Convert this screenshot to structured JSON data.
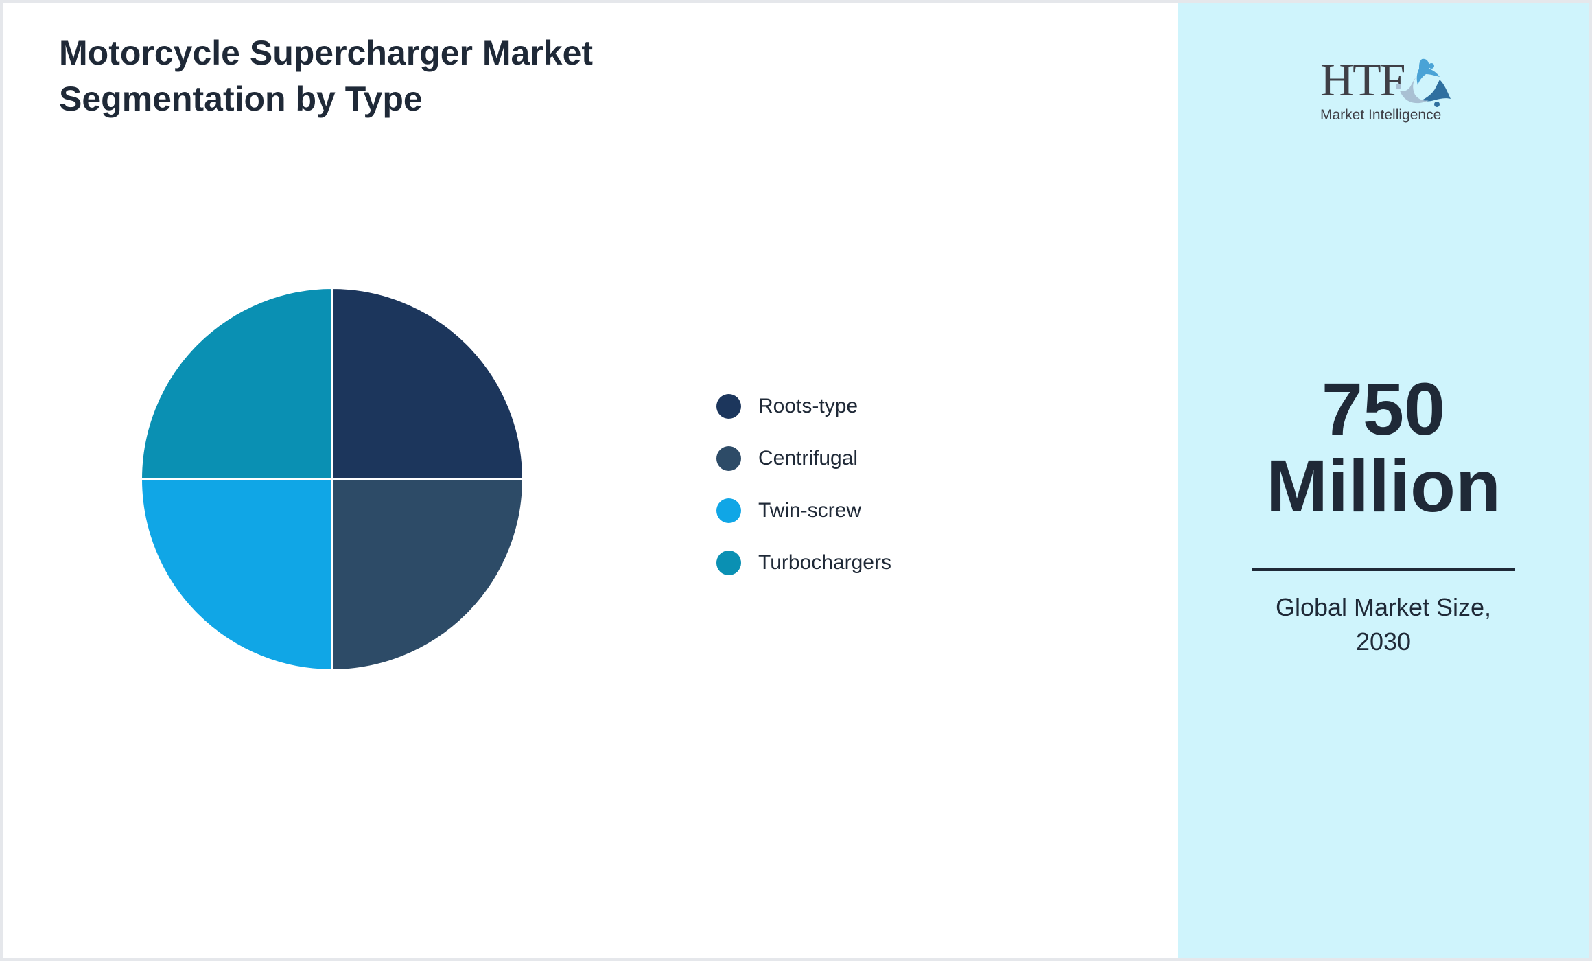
{
  "header": {
    "title_line1": "Motorcycle Supercharger Market",
    "title_line2": "Segmentation by Type"
  },
  "legend": [
    {
      "label": "Roots-type",
      "color": "#1c365c"
    },
    {
      "label": "Centrifugal",
      "color": "#2d4b67"
    },
    {
      "label": "Twin-screw",
      "color": "#10a6e6"
    },
    {
      "label": "Turbochargers",
      "color": "#0a90b3"
    }
  ],
  "summary": {
    "value_line1": "750",
    "value_line2": "Million",
    "caption_line1": "Global Market Size,",
    "caption_line2": "2030",
    "panel_color": "#cff4fc"
  },
  "logo": {
    "brand": "HTF",
    "tagline": "Market Intelligence"
  },
  "chart_data": {
    "type": "pie",
    "title": "Motorcycle Supercharger Market Segmentation by Type",
    "categories": [
      "Roots-type",
      "Centrifugal",
      "Twin-screw",
      "Turbochargers"
    ],
    "values": [
      25,
      25,
      25,
      25
    ],
    "colors": [
      "#1c365c",
      "#2d4b67",
      "#10a6e6",
      "#0a90b3"
    ],
    "start_angle": "12 o'clock, clockwise",
    "legend_position": "right",
    "annotation": "750 Million — Global Market Size, 2030"
  }
}
